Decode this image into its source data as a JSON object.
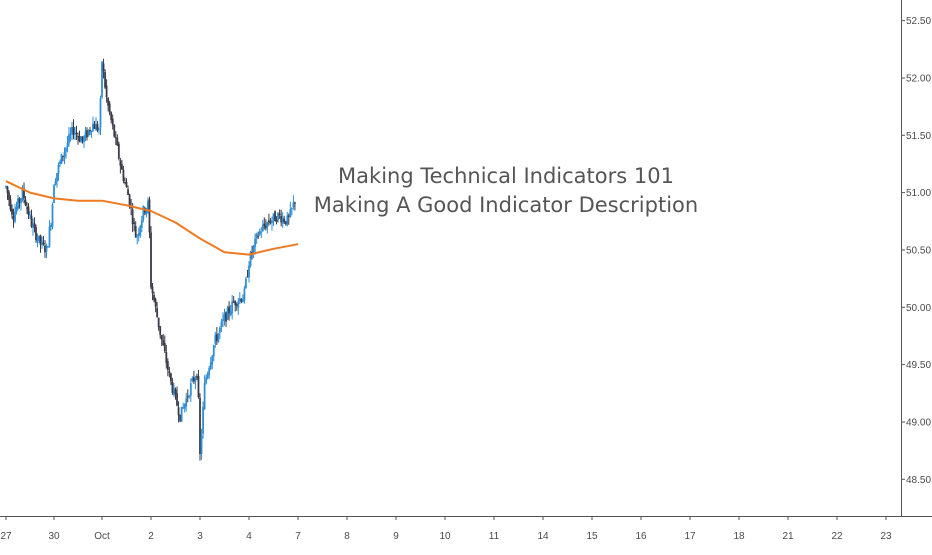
{
  "chart_data": {
    "type": "candlestick",
    "title": "",
    "annotation": {
      "lines": [
        "Making Technical Indicators 101",
        "Making A Good Indicator Description"
      ]
    },
    "colors": {
      "up": "#2e8ed6",
      "down": "#3a3a48",
      "moving_average": "#ee7a22",
      "axis": "#555555",
      "text": "#4a4a4a",
      "annotation": "#555555",
      "background": "#ffffff"
    },
    "ylim": [
      48.18,
      52.68
    ],
    "y_ticks": [
      {
        "value": 52.5,
        "label": "52.50"
      },
      {
        "value": 52.0,
        "label": "52.00"
      },
      {
        "value": 51.5,
        "label": "51.50"
      },
      {
        "value": 51.0,
        "label": "51.00"
      },
      {
        "value": 50.5,
        "label": "50.50"
      },
      {
        "value": 50.0,
        "label": "50.00"
      },
      {
        "value": 49.5,
        "label": "49.50"
      },
      {
        "value": 49.0,
        "label": "49.00"
      },
      {
        "value": 48.5,
        "label": "48.50"
      }
    ],
    "x_ticks": [
      "27",
      "30",
      "Oct",
      "2",
      "3",
      "4",
      "7",
      "8",
      "9",
      "10",
      "11",
      "14",
      "15",
      "16",
      "17",
      "18",
      "21",
      "22",
      "23"
    ],
    "price_path": [
      {
        "t": 0.0,
        "p": 51.05
      },
      {
        "t": 0.15,
        "p": 50.8
      },
      {
        "t": 0.35,
        "p": 51.0
      },
      {
        "t": 0.55,
        "p": 50.7
      },
      {
        "t": 0.72,
        "p": 50.55
      },
      {
        "t": 0.85,
        "p": 50.5
      },
      {
        "t": 0.95,
        "p": 50.8
      },
      {
        "t": 1.0,
        "p": 51.1
      },
      {
        "t": 1.2,
        "p": 51.35
      },
      {
        "t": 1.4,
        "p": 51.55
      },
      {
        "t": 1.6,
        "p": 51.45
      },
      {
        "t": 1.8,
        "p": 51.6
      },
      {
        "t": 1.95,
        "p": 51.55
      },
      {
        "t": 2.0,
        "p": 52.15
      },
      {
        "t": 2.1,
        "p": 51.8
      },
      {
        "t": 2.25,
        "p": 51.5
      },
      {
        "t": 2.4,
        "p": 51.2
      },
      {
        "t": 2.55,
        "p": 50.95
      },
      {
        "t": 2.7,
        "p": 50.6
      },
      {
        "t": 2.85,
        "p": 50.85
      },
      {
        "t": 2.95,
        "p": 50.9
      },
      {
        "t": 3.0,
        "p": 50.2
      },
      {
        "t": 3.2,
        "p": 49.75
      },
      {
        "t": 3.4,
        "p": 49.35
      },
      {
        "t": 3.6,
        "p": 49.05
      },
      {
        "t": 3.8,
        "p": 49.3
      },
      {
        "t": 3.95,
        "p": 49.45
      },
      {
        "t": 4.0,
        "p": 48.7
      },
      {
        "t": 4.1,
        "p": 49.35
      },
      {
        "t": 4.3,
        "p": 49.7
      },
      {
        "t": 4.5,
        "p": 49.9
      },
      {
        "t": 4.7,
        "p": 50.05
      },
      {
        "t": 4.9,
        "p": 50.1
      },
      {
        "t": 5.0,
        "p": 50.4
      },
      {
        "t": 5.2,
        "p": 50.65
      },
      {
        "t": 5.4,
        "p": 50.75
      },
      {
        "t": 5.6,
        "p": 50.8
      },
      {
        "t": 5.8,
        "p": 50.75
      },
      {
        "t": 5.95,
        "p": 50.95
      }
    ],
    "moving_average": [
      {
        "t": 0.0,
        "p": 51.1
      },
      {
        "t": 0.5,
        "p": 51.0
      },
      {
        "t": 1.0,
        "p": 50.95
      },
      {
        "t": 1.5,
        "p": 50.93
      },
      {
        "t": 2.0,
        "p": 50.93
      },
      {
        "t": 2.5,
        "p": 50.89
      },
      {
        "t": 3.0,
        "p": 50.84
      },
      {
        "t": 3.5,
        "p": 50.74
      },
      {
        "t": 4.0,
        "p": 50.6
      },
      {
        "t": 4.5,
        "p": 50.48
      },
      {
        "t": 5.0,
        "p": 50.46
      },
      {
        "t": 5.5,
        "p": 50.51
      },
      {
        "t": 6.0,
        "p": 50.55
      }
    ],
    "bars_per_session": 10,
    "grid": false,
    "legend": "none"
  }
}
